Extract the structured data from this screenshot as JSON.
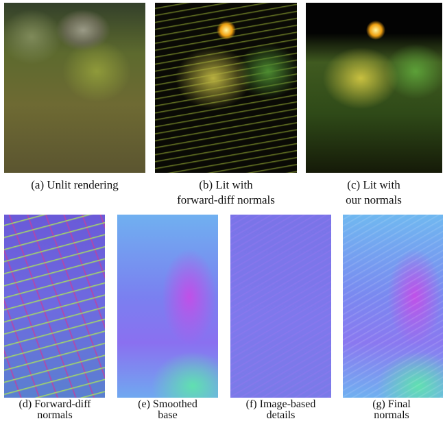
{
  "figure": {
    "panels": [
      {
        "caption": [
          "(a) Unlit rendering"
        ]
      },
      {
        "caption": [
          "(b) Lit with",
          "forward-diff normals"
        ]
      },
      {
        "caption": [
          "(c) Lit with",
          "our normals"
        ]
      },
      {
        "caption": [
          "(d) Forward-diff",
          "normals"
        ]
      },
      {
        "caption": [
          "(e) Smoothed",
          "base"
        ]
      },
      {
        "caption": [
          "(f) Image-based",
          "details"
        ]
      },
      {
        "caption": [
          "(g) Final",
          "normals"
        ]
      }
    ]
  }
}
